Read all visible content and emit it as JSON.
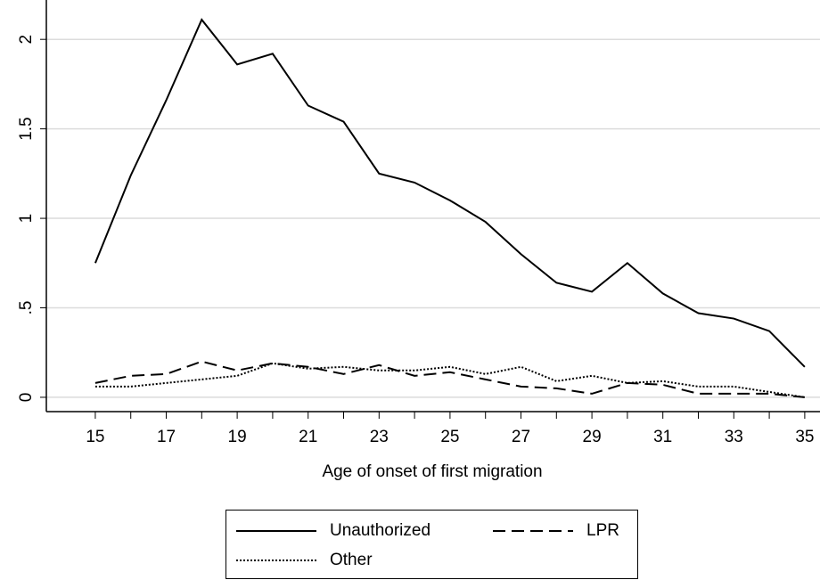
{
  "chart_data": {
    "type": "line",
    "x_label": "Age of onset of first migration",
    "x": [
      15,
      16,
      17,
      18,
      19,
      20,
      21,
      22,
      23,
      24,
      25,
      26,
      27,
      28,
      29,
      30,
      31,
      32,
      33,
      34,
      35
    ],
    "series": [
      {
        "name": "Unauthorized",
        "color": "#000000",
        "style": "solid",
        "values": [
          0.75,
          1.24,
          1.66,
          2.11,
          1.86,
          1.92,
          1.63,
          1.54,
          1.25,
          1.2,
          1.1,
          0.98,
          0.8,
          0.64,
          0.59,
          0.75,
          0.58,
          0.47,
          0.44,
          0.37,
          0.17
        ]
      },
      {
        "name": "LPR",
        "color": "#000000",
        "style": "dashed",
        "values": [
          0.08,
          0.12,
          0.13,
          0.2,
          0.15,
          0.19,
          0.17,
          0.13,
          0.18,
          0.12,
          0.14,
          0.1,
          0.06,
          0.05,
          0.02,
          0.08,
          0.07,
          0.02,
          0.02,
          0.02,
          0.0
        ]
      },
      {
        "name": "Other",
        "color": "#000000",
        "style": "dotted",
        "values": [
          0.06,
          0.06,
          0.08,
          0.1,
          0.12,
          0.19,
          0.16,
          0.17,
          0.15,
          0.15,
          0.17,
          0.13,
          0.17,
          0.09,
          0.12,
          0.08,
          0.09,
          0.06,
          0.06,
          0.03,
          0.0
        ]
      }
    ],
    "xlim": [
      13.62,
      35.43
    ],
    "xticks": [
      15,
      17,
      19,
      21,
      23,
      25,
      27,
      29,
      31,
      33,
      35
    ],
    "xticks_minor": [
      16,
      18,
      20,
      22,
      24,
      26,
      28,
      30,
      32,
      34
    ],
    "ylim": [
      -0.08,
      2.22
    ],
    "yticks": [
      0,
      {
        "value": 0.5,
        "label": ".5"
      },
      1,
      1.5,
      2
    ],
    "grid": true,
    "grid_color": "#dcdcdc"
  }
}
